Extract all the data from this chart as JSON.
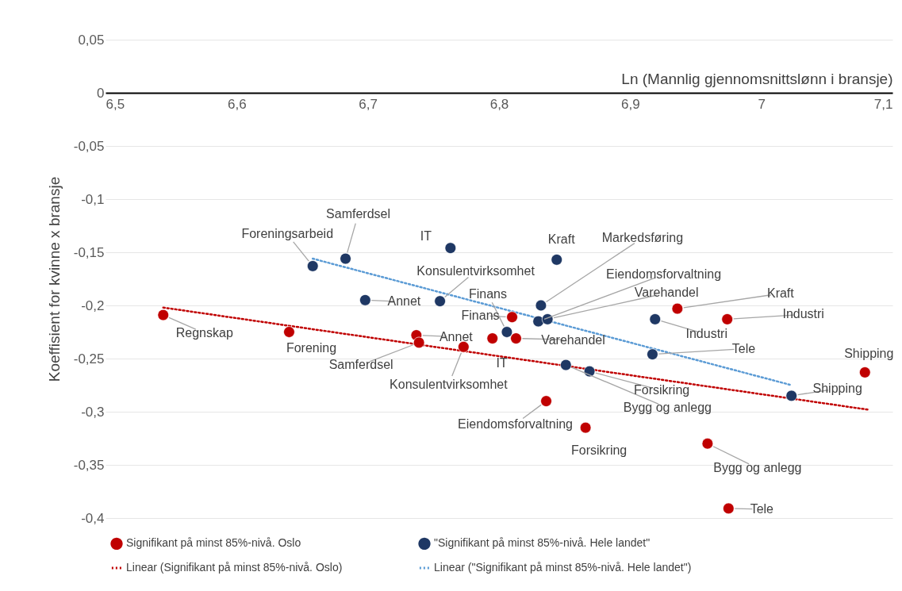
{
  "chart_data": {
    "type": "scatter",
    "xlabel": "Ln (Mannlig gjennomsnittslønn i bransje)",
    "ylabel": "Koeffisient for kvinne x bransje",
    "xlim": [
      6.5,
      7.1
    ],
    "xticks": [
      {
        "value": 6.5,
        "label": "6,5"
      },
      {
        "value": 6.6,
        "label": "6,6"
      },
      {
        "value": 6.7,
        "label": "6,7"
      },
      {
        "value": 6.8,
        "label": "6,8"
      },
      {
        "value": 6.9,
        "label": "6,9"
      },
      7,
      {
        "value": 7.1,
        "label": "7,1"
      }
    ],
    "ylim": [
      -0.4,
      0.05
    ],
    "yticks": [
      {
        "value": -0.4,
        "label": "-0,4"
      },
      {
        "value": -0.35,
        "label": "-0,35"
      },
      {
        "value": -0.3,
        "label": "-0,3"
      },
      {
        "value": -0.25,
        "label": "-0,25"
      },
      {
        "value": -0.2,
        "label": "-0,2"
      },
      {
        "value": -0.15,
        "label": "-0,15"
      },
      {
        "value": -0.1,
        "label": "-0,1"
      },
      {
        "value": -0.05,
        "label": "-0,05"
      },
      0,
      {
        "value": 0.05,
        "label": "0,05"
      }
    ],
    "grid": "y",
    "legend": "bottom",
    "series": [
      {
        "name": "Signifikant på minst 85%-nivå. Oslo",
        "marker": "circle",
        "color": "#c00000",
        "x": [
          6.544,
          6.64,
          6.737,
          6.739,
          6.773,
          6.795,
          6.81,
          6.813,
          6.836,
          6.866,
          6.936,
          6.974,
          6.959,
          6.975,
          7.079
        ],
        "values": [
          -0.209,
          -0.225,
          -0.228,
          -0.235,
          -0.239,
          -0.231,
          -0.211,
          -0.231,
          -0.29,
          -0.315,
          -0.203,
          -0.213,
          -0.33,
          -0.391,
          -0.263
        ]
      },
      {
        "name": "\"Signifikant på minst 85%-nivå. Hele landet\"",
        "marker": "circle",
        "color": "#1f3864",
        "x": [
          6.658,
          6.683,
          6.763,
          6.698,
          6.755,
          6.844,
          6.806,
          6.832,
          6.83,
          6.837,
          6.919,
          6.917,
          6.851,
          6.869,
          7.023
        ],
        "values": [
          -0.163,
          -0.156,
          -0.146,
          -0.195,
          -0.196,
          -0.157,
          -0.225,
          -0.2,
          -0.215,
          -0.213,
          -0.213,
          -0.246,
          -0.256,
          -0.262,
          -0.285
        ]
      },
      {
        "name": "Linear (Signifikant på minst 85%-nivå. Oslo)",
        "type": "line",
        "marker": "none",
        "line_style": "dotted",
        "color": "#c00000",
        "x": [
          6.544,
          7.081
        ],
        "values": [
          -0.202,
          -0.298
        ]
      },
      {
        "name": "Linear (\"Signifikant på minst 85%-nivå. Hele landet\")",
        "type": "line",
        "marker": "none",
        "line_style": "dotted",
        "color": "#5b9bd5",
        "x": [
          6.658,
          7.023
        ],
        "values": [
          -0.156,
          -0.275
        ]
      }
    ],
    "annotations": [
      {
        "text": "Regnskap",
        "x": 6.544,
        "y": -0.209
      },
      {
        "text": "Forening",
        "x": 6.64,
        "y": -0.225
      },
      {
        "text": "Annet",
        "x": 6.737,
        "y": -0.228
      },
      {
        "text": "Samferdsel",
        "x": 6.739,
        "y": -0.235
      },
      {
        "text": "Konsulentvirksomhet",
        "x": 6.773,
        "y": -0.239
      },
      {
        "text": "IT",
        "x": 6.795,
        "y": -0.231
      },
      {
        "text": "Finans",
        "x": 6.81,
        "y": -0.211
      },
      {
        "text": "Varehandel",
        "x": 6.813,
        "y": -0.231
      },
      {
        "text": "Eiendomsforvaltning",
        "x": 6.836,
        "y": -0.29
      },
      {
        "text": "Forsikring",
        "x": 6.866,
        "y": -0.315
      },
      {
        "text": "Kraft",
        "x": 6.936,
        "y": -0.203
      },
      {
        "text": "Industri",
        "x": 6.974,
        "y": -0.213
      },
      {
        "text": "Bygg og anlegg",
        "x": 6.959,
        "y": -0.33
      },
      {
        "text": "Tele",
        "x": 6.975,
        "y": -0.391
      },
      {
        "text": "Shipping",
        "x": 7.079,
        "y": -0.263
      },
      {
        "text": "Foreningsarbeid",
        "x": 6.658,
        "y": -0.163
      },
      {
        "text": "Samferdsel",
        "x": 6.683,
        "y": -0.156
      },
      {
        "text": "IT",
        "x": 6.763,
        "y": -0.146
      },
      {
        "text": "Annet",
        "x": 6.698,
        "y": -0.195
      },
      {
        "text": "Konsulentvirksomhet",
        "x": 6.755,
        "y": -0.196
      },
      {
        "text": "Kraft",
        "x": 6.844,
        "y": -0.157
      },
      {
        "text": "Finans",
        "x": 6.806,
        "y": -0.225
      },
      {
        "text": "Markedsføring",
        "x": 6.832,
        "y": -0.2
      },
      {
        "text": "Eiendomsforvaltning",
        "x": 6.83,
        "y": -0.215
      },
      {
        "text": "Varehandel",
        "x": 6.837,
        "y": -0.213
      },
      {
        "text": "Industri",
        "x": 6.919,
        "y": -0.213
      },
      {
        "text": "Tele",
        "x": 6.917,
        "y": -0.246
      },
      {
        "text": "Bygg og anlegg",
        "x": 6.851,
        "y": -0.256
      },
      {
        "text": "Forsikring",
        "x": 6.869,
        "y": -0.262
      },
      {
        "text": "Shipping",
        "x": 7.023,
        "y": -0.285
      }
    ]
  }
}
